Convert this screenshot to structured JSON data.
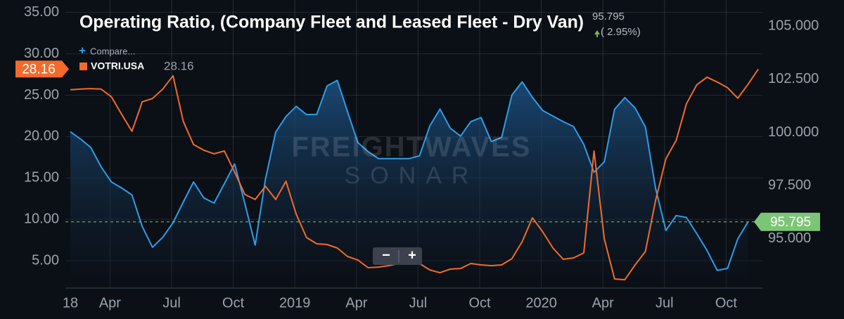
{
  "chart_data": {
    "type": "line",
    "title": "Operating Ratio, (Company Fleet and Leased Fleet - Dry Van)",
    "header_value_change": "( 2.95%)",
    "compare_label": "Compare...",
    "watermark": [
      "FREIGHTWAVES",
      "SONAR"
    ],
    "zoom_buttons": [
      "−",
      "+"
    ],
    "categories": [
      "18",
      null,
      null,
      null,
      "Apr",
      null,
      null,
      null,
      null,
      null,
      "Jul",
      null,
      null,
      null,
      null,
      null,
      "Oct",
      null,
      null,
      null,
      null,
      null,
      "2019",
      null,
      null,
      null,
      null,
      null,
      "Apr",
      null,
      null,
      null,
      null,
      null,
      "Jul",
      null,
      null,
      null,
      null,
      null,
      "Oct",
      null,
      null,
      null,
      null,
      null,
      "2020",
      null,
      null,
      null,
      null,
      null,
      "Apr",
      null,
      null,
      null,
      null,
      null,
      "Jul",
      null,
      null,
      null,
      null,
      null,
      "Oct",
      null,
      null,
      null
    ],
    "ylim": [
      1.7,
      36.5
    ],
    "yticks": [
      {
        "value": 5,
        "label": "5.00"
      },
      {
        "value": 10,
        "label": "10.00"
      },
      {
        "value": 15,
        "label": "15.00"
      },
      {
        "value": 20,
        "label": "20.00"
      },
      {
        "value": 25,
        "label": "25.00"
      },
      {
        "value": 30,
        "label": "30.00"
      },
      {
        "value": 35,
        "label": "35.00"
      }
    ],
    "y2lim": [
      92.68,
      106.23
    ],
    "y2ticks": [
      {
        "value": 95,
        "label": "95.000"
      },
      {
        "value": 97.5,
        "label": "97.500"
      },
      {
        "value": 100,
        "label": "100.000"
      },
      {
        "value": 102.5,
        "label": "102.500"
      },
      {
        "value": 105,
        "label": "105.000"
      }
    ],
    "grid": true,
    "series": [
      {
        "color": "#2d9ee8",
        "axis": "y2",
        "area": true,
        "values": [
          100.03,
          99.69,
          99.29,
          98.38,
          97.67,
          97.39,
          97.06,
          95.58,
          94.6,
          95.07,
          95.75,
          96.73,
          97.67,
          96.92,
          96.68,
          97.59,
          98.52,
          96.65,
          94.7,
          97.8,
          100.02,
          100.75,
          101.23,
          100.84,
          100.85,
          102.19,
          102.45,
          100.97,
          99.52,
          99.1,
          98.77,
          98.77,
          98.77,
          98.77,
          98.9,
          100.3,
          101.1,
          100.2,
          99.83,
          100.51,
          100.7,
          99.57,
          99.77,
          101.76,
          102.38,
          101.65,
          101.03,
          100.77,
          100.51,
          100.28,
          99.44,
          98.13,
          98.62,
          101.09,
          101.64,
          101.15,
          100.26,
          97.36,
          95.39,
          96.09,
          96.0,
          95.24,
          94.45,
          93.51,
          93.61,
          95.0,
          95.795,
          null
        ]
      },
      {
        "name": "VOTRI.USA",
        "color": "#f26b2a",
        "axis": "y",
        "values": [
          25.65,
          25.74,
          25.8,
          25.74,
          24.8,
          22.68,
          20.64,
          24.2,
          24.6,
          25.74,
          27.35,
          21.83,
          19.03,
          18.35,
          17.92,
          18.26,
          15.71,
          13.0,
          12.4,
          14.0,
          12.4,
          14.6,
          10.62,
          7.81,
          7.05,
          6.96,
          6.54,
          5.52,
          5.09,
          4.16,
          4.24,
          4.41,
          4.67,
          5.35,
          4.67,
          3.9,
          3.56,
          3.99,
          4.07,
          4.67,
          4.5,
          4.41,
          4.5,
          5.26,
          7.3,
          10.19,
          8.5,
          6.54,
          5.18,
          5.35,
          5.94,
          18.26,
          7.64,
          2.8,
          2.71,
          4.5,
          6.11,
          12.32,
          17.33,
          19.54,
          23.96,
          26.25,
          27.18,
          26.59,
          25.91,
          24.63,
          26.33,
          28.16
        ]
      }
    ]
  }
}
